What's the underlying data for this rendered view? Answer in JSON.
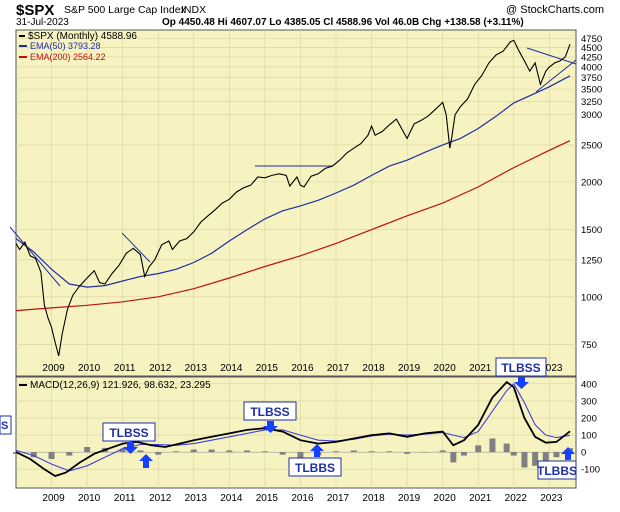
{
  "header": {
    "symbol": "$SPX",
    "name": "S&P 500 Large Cap Index",
    "exchange": "INDX",
    "date": "31-Jul-2023",
    "watermark": "@ StockCharts.com",
    "ohlc": "Op 4450.48 Hi 4607.07 Lo 4385.05 Cl 4588.96 Vol 46.0B Chg +138.58 (+3.11%)"
  },
  "legend": {
    "price": "$SPX (Monthly) 4588.96",
    "ema50": "EMA(50) 3793.28",
    "ema200": "EMA(200) 2564.22"
  },
  "macd_legend": "MACD(12,26,9) 121.926, 98.632, 23.295",
  "annotations": {
    "tlbss_left": "TLBSS",
    "tlbss_2011": "TLBSS",
    "tlbss_2015": "TLBSS",
    "tlbbs_2016": "TLBBS",
    "tlbss_2022": "TLBSS",
    "tlbbs_2023": "TLBBS",
    "tlbss_left_partial": "S"
  },
  "colors": {
    "panel_bg": "#f7f3c0",
    "price": "#000000",
    "ema50": "#1f2fa6",
    "ema200": "#c01010",
    "signal": "#4040e0",
    "histogram": "#808080",
    "arrow": "#1540ff",
    "label_bg": "#ffffff",
    "trendline": "#1f2fa6"
  },
  "chart_data": [
    {
      "type": "line",
      "title": "$SPX S&P 500 Large Cap Index INDX",
      "scale": "log",
      "y_ticks": [
        750,
        1000,
        1250,
        1500,
        2000,
        2500,
        3000,
        3250,
        3500,
        3750,
        4000,
        4250,
        4500,
        4750
      ],
      "ylim": [
        620,
        5000
      ],
      "x_ticks": [
        "2009",
        "2010",
        "2011",
        "2012",
        "2013",
        "2014",
        "2015",
        "2016",
        "2017",
        "2018",
        "2019",
        "2020",
        "2021",
        "2022",
        "2023"
      ],
      "xlim": [
        2008.0,
        2023.75
      ],
      "series": [
        {
          "name": "$SPX (Monthly)",
          "x": [
            2008.0,
            2008.1,
            2008.25,
            2008.4,
            2008.55,
            2008.7,
            2008.8,
            2008.9,
            2009.0,
            2009.1,
            2009.2,
            2009.3,
            2009.45,
            2009.6,
            2009.8,
            2010.0,
            2010.2,
            2010.35,
            2010.5,
            2010.7,
            2010.9,
            2011.1,
            2011.3,
            2011.5,
            2011.62,
            2011.75,
            2011.9,
            2012.1,
            2012.3,
            2012.4,
            2012.6,
            2012.8,
            2013.0,
            2013.2,
            2013.4,
            2013.6,
            2013.8,
            2014.0,
            2014.2,
            2014.4,
            2014.6,
            2014.8,
            2015.0,
            2015.2,
            2015.4,
            2015.6,
            2015.7,
            2015.9,
            2016.0,
            2016.1,
            2016.3,
            2016.5,
            2016.7,
            2016.9,
            2017.1,
            2017.3,
            2017.5,
            2017.7,
            2017.9,
            2018.0,
            2018.1,
            2018.3,
            2018.5,
            2018.7,
            2018.9,
            2019.0,
            2019.2,
            2019.4,
            2019.6,
            2019.8,
            2020.0,
            2020.1,
            2020.2,
            2020.25,
            2020.35,
            2020.5,
            2020.7,
            2020.9,
            2021.1,
            2021.3,
            2021.5,
            2021.7,
            2021.9,
            2022.0,
            2022.15,
            2022.3,
            2022.45,
            2022.6,
            2022.75,
            2022.9,
            2023.0,
            2023.15,
            2023.3,
            2023.45,
            2023.58
          ],
          "values": [
            1380,
            1330,
            1390,
            1280,
            1260,
            1160,
            950,
            880,
            830,
            760,
            700,
            800,
            930,
            1010,
            1070,
            1120,
            1170,
            1090,
            1080,
            1150,
            1210,
            1300,
            1340,
            1290,
            1130,
            1200,
            1250,
            1370,
            1400,
            1330,
            1400,
            1420,
            1480,
            1570,
            1630,
            1690,
            1760,
            1800,
            1880,
            1930,
            1960,
            2060,
            2050,
            2080,
            2100,
            2080,
            1950,
            2060,
            1960,
            1940,
            2070,
            2100,
            2170,
            2200,
            2280,
            2380,
            2450,
            2520,
            2650,
            2800,
            2650,
            2710,
            2820,
            2920,
            2700,
            2600,
            2840,
            2900,
            2980,
            3100,
            3230,
            3000,
            2450,
            2600,
            3000,
            3150,
            3300,
            3600,
            3800,
            4100,
            4300,
            4400,
            4650,
            4700,
            4400,
            4150,
            3900,
            4100,
            3600,
            3900,
            4000,
            4100,
            4150,
            4250,
            4588.96
          ]
        },
        {
          "name": "EMA(50)",
          "x": [
            2008.0,
            2008.5,
            2009.0,
            2009.5,
            2010.0,
            2010.5,
            2011.0,
            2011.5,
            2012.0,
            2012.5,
            2013.0,
            2013.5,
            2014.0,
            2014.5,
            2015.0,
            2015.5,
            2016.0,
            2016.5,
            2017.0,
            2017.5,
            2018.0,
            2018.5,
            2019.0,
            2019.5,
            2020.0,
            2020.5,
            2021.0,
            2021.5,
            2022.0,
            2022.5,
            2023.0,
            2023.58
          ],
          "values": [
            1420,
            1310,
            1180,
            1080,
            1060,
            1070,
            1100,
            1130,
            1150,
            1180,
            1230,
            1300,
            1400,
            1500,
            1600,
            1680,
            1730,
            1790,
            1870,
            1960,
            2080,
            2200,
            2280,
            2390,
            2500,
            2600,
            2760,
            2970,
            3220,
            3380,
            3550,
            3793.28
          ]
        },
        {
          "name": "EMA(200)",
          "x": [
            2008.0,
            2009.0,
            2010.0,
            2011.0,
            2012.0,
            2013.0,
            2014.0,
            2015.0,
            2016.0,
            2017.0,
            2018.0,
            2019.0,
            2020.0,
            2021.0,
            2022.0,
            2023.0,
            2023.58
          ],
          "values": [
            920,
            935,
            950,
            970,
            1000,
            1050,
            1120,
            1200,
            1280,
            1380,
            1500,
            1630,
            1760,
            1940,
            2180,
            2420,
            2564.22
          ]
        }
      ]
    },
    {
      "type": "line",
      "title": "MACD(12,26,9) 121.926, 98.632, 23.295",
      "y_ticks": [
        -100,
        0,
        100,
        200,
        300,
        400
      ],
      "ylim": [
        -210,
        440
      ],
      "x_ticks": [
        "2009",
        "2010",
        "2011",
        "2012",
        "2013",
        "2014",
        "2015",
        "2016",
        "2017",
        "2018",
        "2019",
        "2020",
        "2021",
        "2022",
        "2023"
      ],
      "xlim": [
        2008.0,
        2023.75
      ],
      "series": [
        {
          "name": "MACD",
          "x": [
            2008.0,
            2008.4,
            2008.8,
            2009.1,
            2009.4,
            2009.8,
            2010.2,
            2010.6,
            2011.0,
            2011.4,
            2011.8,
            2012.2,
            2012.6,
            2013.0,
            2013.5,
            2014.0,
            2014.5,
            2015.0,
            2015.5,
            2016.0,
            2016.5,
            2017.0,
            2017.5,
            2018.0,
            2018.5,
            2019.0,
            2019.5,
            2020.0,
            2020.3,
            2020.6,
            2021.0,
            2021.4,
            2021.8,
            2022.0,
            2022.3,
            2022.6,
            2022.9,
            2023.2,
            2023.58
          ],
          "values": [
            0,
            -40,
            -100,
            -140,
            -120,
            -60,
            -10,
            20,
            50,
            60,
            40,
            30,
            50,
            70,
            90,
            110,
            130,
            140,
            120,
            70,
            50,
            60,
            80,
            100,
            110,
            90,
            110,
            120,
            40,
            70,
            160,
            320,
            410,
            380,
            200,
            90,
            55,
            60,
            121.926
          ]
        },
        {
          "name": "Signal",
          "x": [
            2008.0,
            2008.5,
            2009.0,
            2009.5,
            2010.0,
            2010.5,
            2011.0,
            2011.5,
            2012.0,
            2012.5,
            2013.0,
            2013.5,
            2014.0,
            2014.5,
            2015.0,
            2015.5,
            2016.0,
            2016.5,
            2017.0,
            2017.5,
            2018.0,
            2018.5,
            2019.0,
            2019.5,
            2020.0,
            2020.3,
            2020.6,
            2021.0,
            2021.4,
            2021.8,
            2022.0,
            2022.3,
            2022.6,
            2022.9,
            2023.2,
            2023.58
          ],
          "values": [
            10,
            -20,
            -70,
            -110,
            -80,
            -30,
            20,
            45,
            45,
            40,
            50,
            70,
            90,
            110,
            130,
            130,
            100,
            70,
            65,
            75,
            95,
            105,
            100,
            105,
            115,
            100,
            85,
            120,
            240,
            360,
            400,
            290,
            160,
            100,
            85,
            98.632
          ]
        },
        {
          "name": "Histogram",
          "x": [
            2008.0,
            2008.5,
            2009.0,
            2009.5,
            2010.0,
            2010.5,
            2011.0,
            2011.5,
            2012.0,
            2012.5,
            2013.0,
            2013.5,
            2014.0,
            2014.5,
            2015.0,
            2015.5,
            2016.0,
            2016.5,
            2017.0,
            2017.5,
            2018.0,
            2018.5,
            2019.0,
            2019.5,
            2020.0,
            2020.3,
            2020.6,
            2021.0,
            2021.4,
            2021.8,
            2022.0,
            2022.3,
            2022.6,
            2022.9,
            2023.2,
            2023.58
          ],
          "values": [
            -10,
            -30,
            -40,
            -20,
            30,
            25,
            20,
            10,
            -15,
            5,
            15,
            15,
            10,
            10,
            5,
            -15,
            -40,
            -20,
            5,
            10,
            5,
            5,
            -10,
            0,
            10,
            -60,
            -20,
            40,
            80,
            50,
            -20,
            -90,
            -80,
            -50,
            -30,
            23.295
          ]
        }
      ]
    }
  ]
}
